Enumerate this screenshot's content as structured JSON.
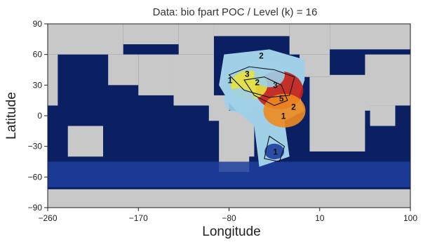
{
  "chart_data": {
    "type": "heatmap",
    "title": "Data: bio fpart POC / Level (k) = 16",
    "xlabel": "Longitude",
    "ylabel": "Latitude",
    "xlim": [
      -260,
      100
    ],
    "ylim": [
      -90,
      90
    ],
    "x_ticks": [
      -260,
      -170,
      -80,
      10,
      100
    ],
    "y_ticks": [
      90,
      60,
      30,
      0,
      -30,
      -60,
      -90
    ],
    "x_tick_labels": [
      "−260",
      "−170",
      "−80",
      "10",
      "100"
    ],
    "y_tick_labels": [
      "90",
      "60",
      "30",
      "0",
      "−30",
      "−60",
      "−90"
    ],
    "colormap": [
      "#0b1f63",
      "#1d3f9e",
      "#4f86d6",
      "#9fd0e8",
      "#e8e23a",
      "#f08a1f",
      "#c81e14"
    ],
    "land_color": "#c8c8c8",
    "ocean_base_value": 0,
    "contour_labels": [
      {
        "text": "2",
        "x": -48,
        "y": 56
      },
      {
        "text": "3",
        "x": -62,
        "y": 38
      },
      {
        "text": "1",
        "x": -79,
        "y": 32
      },
      {
        "text": "2",
        "x": -52,
        "y": 30
      },
      {
        "text": "3",
        "x": -34,
        "y": 27
      },
      {
        "text": "5",
        "x": -28,
        "y": 14
      },
      {
        "text": "2",
        "x": -16,
        "y": 6
      },
      {
        "text": "1",
        "x": -26,
        "y": -3
      },
      {
        "text": "1",
        "x": -34,
        "y": -38
      }
    ],
    "hotspots": [
      {
        "lon": -30,
        "lat": 25,
        "value": 6
      },
      {
        "lon": -25,
        "lat": 5,
        "value": 5
      },
      {
        "lon": -60,
        "lat": 30,
        "value": 4
      },
      {
        "lon": -70,
        "lat": 15,
        "value": 3
      },
      {
        "lon": -40,
        "lat": 40,
        "value": 3
      },
      {
        "lon": -35,
        "lat": -35,
        "value": 1
      }
    ]
  }
}
